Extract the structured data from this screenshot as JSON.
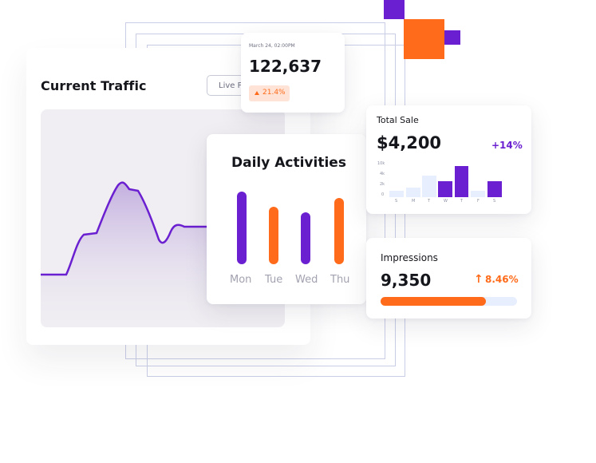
{
  "colors": {
    "purple": "#6a1fd0",
    "orange": "#ff6b1a",
    "light_bar": "#e7efff",
    "dark_text": "#15161c"
  },
  "traffic": {
    "title": "Current Traffic",
    "live_button": "Live Preview"
  },
  "metric": {
    "timestamp": "March 24, 02:00PM",
    "value": "122,637",
    "change": "21.4%",
    "change_icon": "triangle-up-icon"
  },
  "daily": {
    "title": "Daily Activities",
    "days": [
      {
        "label": "Mon",
        "value": 1.0,
        "color": "purple"
      },
      {
        "label": "Tue",
        "value": 0.78,
        "color": "orange"
      },
      {
        "label": "Wed",
        "value": 0.71,
        "color": "purple"
      },
      {
        "label": "Thu",
        "value": 0.9,
        "color": "orange"
      }
    ]
  },
  "sale": {
    "title": "Total Sale",
    "value": "$4,200",
    "change": "+14%",
    "y_ticks": [
      "10k",
      "4k",
      "2k",
      "0"
    ],
    "x_ticks": [
      "S",
      "M",
      "T",
      "W",
      "T",
      "F",
      "S"
    ],
    "bars": [
      0.17,
      0.27,
      0.65,
      0.5,
      1.0,
      0.17,
      0.5
    ],
    "bar_colors": [
      "light",
      "light",
      "light",
      "purple",
      "purple",
      "light",
      "purple"
    ]
  },
  "impressions": {
    "title": "Impressions",
    "value": "9,350",
    "change": "8.46%",
    "progress": 0.77
  }
}
